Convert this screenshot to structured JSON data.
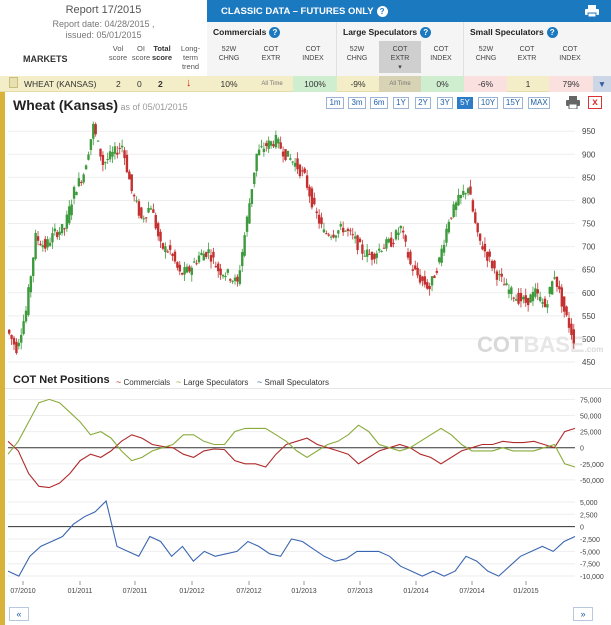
{
  "report": {
    "title": "Report 17/2015",
    "date": "Report date: 04/28/2015 ,",
    "issued": "issued: 05/01/2015"
  },
  "columns": {
    "markets": "MARKETS",
    "vol": [
      "Vol",
      "score"
    ],
    "oi": [
      "OI",
      "score"
    ],
    "total": [
      "Total",
      "score"
    ],
    "trend": [
      "Long-term",
      "trend"
    ]
  },
  "header": {
    "title": "CLASSIC DATA – FUTURES ONLY",
    "help": "?"
  },
  "groups": [
    {
      "name": "Commercials",
      "help": "?",
      "subs": [
        [
          "52W",
          "CHNG"
        ],
        [
          "COT",
          "EXTR"
        ],
        [
          "COT",
          "INDEX"
        ]
      ]
    },
    {
      "name": "Large Speculators",
      "help": "?",
      "subs": [
        [
          "52W",
          "CHNG"
        ],
        [
          "COT",
          "EXTR"
        ],
        [
          "COT",
          "INDEX"
        ]
      ]
    },
    {
      "name": "Small Speculators",
      "help": "?",
      "subs": [
        [
          "52W",
          "CHNG"
        ],
        [
          "COT",
          "EXTR"
        ],
        [
          "COT",
          "INDEX"
        ]
      ]
    }
  ],
  "row": {
    "market": "WHEAT (KANSAS)",
    "vol": "2",
    "oi": "0",
    "total": "2",
    "trend_arrow": "↓",
    "comm_chng": "10%",
    "comm_extr": "All Time",
    "comm_index": "100%",
    "ls_chng": "-9%",
    "ls_extr": "All Time",
    "ls_index": "0%",
    "ss_chng": "-6%",
    "ss_extr": "1",
    "ss_index": "79%",
    "expand": "▼"
  },
  "price_chart": {
    "title": "Wheat (Kansas)",
    "asof": "as of 05/01/2015",
    "ranges": [
      "1m",
      "3m",
      "6m",
      "1Y",
      "2Y",
      "3Y",
      "5Y",
      "10Y",
      "15Y",
      "MAX"
    ],
    "active_range": "5Y",
    "close": "x",
    "watermark_a": "COT",
    "watermark_b": "BASE",
    "watermark_suffix": ".com"
  },
  "cot_section": {
    "title": "COT Net Positions",
    "legend": [
      {
        "label": "Commercials",
        "color": "#b02a2a"
      },
      {
        "label": "Large Speculators",
        "color": "#8aab3a"
      },
      {
        "label": "Small Speculators",
        "color": "#3a66b0"
      }
    ]
  },
  "nav": {
    "prev": "«",
    "next": "»"
  },
  "chart_data": [
    {
      "type": "line",
      "title": "Wheat (Kansas)",
      "xlabel": "",
      "ylabel": "",
      "ylim": [
        450,
        970
      ],
      "y_ticks": [
        950,
        900,
        850,
        800,
        750,
        700,
        650,
        600,
        550,
        500,
        450
      ],
      "series": [
        {
          "x": [
            "2010-05",
            "2010-06",
            "2010-07",
            "2010-08",
            "2010-09",
            "2010-10",
            "2010-11",
            "2010-12",
            "2011-01",
            "2011-02",
            "2011-03",
            "2011-04",
            "2011-05",
            "2011-06",
            "2011-07",
            "2011-08",
            "2011-09",
            "2011-10",
            "2011-11",
            "2011-12",
            "2012-01",
            "2012-02",
            "2012-03",
            "2012-04",
            "2012-05",
            "2012-06",
            "2012-07",
            "2012-08",
            "2012-09",
            "2012-10",
            "2012-11",
            "2012-12",
            "2013-01",
            "2013-02",
            "2013-03",
            "2013-04",
            "2013-05",
            "2013-06",
            "2013-07",
            "2013-08",
            "2013-09",
            "2013-10",
            "2013-11",
            "2013-12",
            "2014-01",
            "2014-02",
            "2014-03",
            "2014-04",
            "2014-05",
            "2014-06",
            "2014-07",
            "2014-08",
            "2014-09",
            "2014-10",
            "2014-11",
            "2014-12",
            "2015-01",
            "2015-02",
            "2015-03",
            "2015-04"
          ],
          "values": [
            520,
            480,
            560,
            720,
            700,
            730,
            740,
            820,
            860,
            960,
            880,
            900,
            920,
            820,
            760,
            790,
            700,
            690,
            640,
            650,
            680,
            690,
            650,
            640,
            620,
            760,
            900,
            920,
            930,
            900,
            880,
            850,
            780,
            730,
            730,
            740,
            720,
            690,
            680,
            700,
            710,
            740,
            660,
            630,
            610,
            670,
            760,
            800,
            830,
            720,
            680,
            640,
            610,
            590,
            580,
            600,
            570,
            640,
            560,
            500
          ]
        }
      ]
    },
    {
      "type": "line",
      "title": "COT Net Positions",
      "xlabel": "",
      "ylabel": "",
      "ylim": [
        -75000,
        85000
      ],
      "y_ticks": [
        75000,
        50000,
        25000,
        0,
        -25000,
        -50000
      ],
      "y_tick_labels": [
        "75,000",
        "50,000",
        "25,000",
        "0",
        "-25,000",
        "-50,000"
      ],
      "series": [
        {
          "name": "Commercials",
          "values": [
            10000,
            -5000,
            -40000,
            -60000,
            -62000,
            -55000,
            -40000,
            -20000,
            -10000,
            -15000,
            -5000,
            10000,
            20000,
            15000,
            5000,
            2000,
            0,
            -10000,
            -15000,
            -5000,
            -2000,
            -3000,
            -20000,
            -25000,
            -25000,
            -30000,
            -10000,
            5000,
            10000,
            15000,
            5000,
            0,
            -5000,
            -10000,
            -25000,
            -15000,
            -5000,
            0,
            5000,
            0,
            -10000,
            -15000,
            -25000,
            -15000,
            -5000,
            0,
            5000,
            5000,
            10000,
            8000,
            8000,
            10000,
            5000,
            0,
            25000,
            30000
          ]
        },
        {
          "name": "Large Speculators",
          "values": [
            -10000,
            10000,
            40000,
            70000,
            75000,
            70000,
            55000,
            40000,
            20000,
            25000,
            15000,
            -5000,
            -20000,
            -15000,
            -5000,
            0,
            5000,
            20000,
            20000,
            10000,
            5000,
            5000,
            25000,
            30000,
            30000,
            30000,
            20000,
            10000,
            -5000,
            -15000,
            -5000,
            5000,
            10000,
            20000,
            35000,
            25000,
            5000,
            0,
            -5000,
            0,
            10000,
            20000,
            30000,
            20000,
            5000,
            -5000,
            -5000,
            -5000,
            0,
            -5000,
            -5000,
            -5000,
            0,
            5000,
            -25000,
            -30000
          ]
        }
      ]
    },
    {
      "type": "line",
      "title": "",
      "ylim": [
        -11000,
        6000
      ],
      "y_ticks": [
        5000,
        2500,
        0,
        -2500,
        -5000,
        -7500,
        -10000
      ],
      "y_tick_labels": [
        "5,000",
        "2,500",
        "0",
        "-2,500",
        "-5,000",
        "-7,500",
        "-10,000"
      ],
      "x_ticks": [
        "07/2010",
        "01/2011",
        "07/2011",
        "01/2012",
        "07/2012",
        "01/2013",
        "07/2013",
        "01/2014",
        "07/2014",
        "01/2015"
      ],
      "series": [
        {
          "name": "Small Speculators",
          "values": [
            -9000,
            -10000,
            -6000,
            -4000,
            -3000,
            -2000,
            500,
            2000,
            3000,
            5200,
            -4000,
            -5000,
            -6000,
            -2000,
            -3000,
            -6000,
            -4000,
            -7000,
            -5000,
            -6000,
            -5500,
            -5000,
            -3000,
            -4000,
            -5500,
            -6000,
            -2500,
            -3000,
            -4500,
            -6000,
            -7000,
            -6500,
            -5000,
            -5000,
            -5000,
            -6000,
            -8000,
            -9000,
            -10000,
            -9000,
            -10000,
            -9000,
            -6000,
            -7000,
            -9000,
            -10000,
            -8000,
            -6000,
            -5000,
            -4000,
            -5000,
            -3000,
            -2000
          ]
        }
      ]
    }
  ]
}
